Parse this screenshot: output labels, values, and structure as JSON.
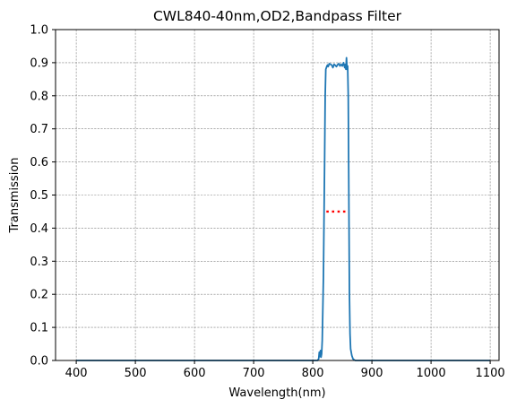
{
  "chart_data": {
    "type": "line",
    "title": "CWL840-40nm,OD2,Bandpass Filter",
    "xlabel": "Wavelength(nm)",
    "ylabel": "Transmission",
    "xlim": [
      365,
      1115
    ],
    "ylim": [
      0,
      1.0
    ],
    "xticks": [
      400,
      500,
      600,
      700,
      800,
      900,
      1000,
      1100
    ],
    "yticks": [
      0.0,
      0.1,
      0.2,
      0.3,
      0.4,
      0.5,
      0.6,
      0.7,
      0.8,
      0.9,
      1.0
    ],
    "grid": true,
    "legend": "none",
    "series": [
      {
        "color": "#1f77b4",
        "style": "solid",
        "x": [
          400,
          700,
          800,
          808,
          810,
          811,
          812,
          813,
          814,
          815,
          816,
          818,
          820,
          821,
          822,
          823,
          824,
          825,
          826,
          828,
          830,
          832,
          834,
          836,
          838,
          840,
          842,
          844,
          846,
          848,
          850,
          852,
          854,
          855,
          856,
          857,
          858,
          859,
          860,
          861,
          862,
          863,
          864,
          866,
          868,
          870,
          872,
          875,
          880,
          900,
          1000,
          1100
        ],
        "y": [
          0.0,
          0.0,
          0.0,
          0.0,
          0.005,
          0.025,
          0.012,
          0.03,
          0.01,
          0.02,
          0.06,
          0.25,
          0.6,
          0.8,
          0.88,
          0.885,
          0.89,
          0.893,
          0.888,
          0.897,
          0.895,
          0.893,
          0.885,
          0.895,
          0.892,
          0.888,
          0.894,
          0.897,
          0.89,
          0.895,
          0.89,
          0.9,
          0.885,
          0.895,
          0.88,
          0.915,
          0.88,
          0.89,
          0.8,
          0.5,
          0.2,
          0.08,
          0.035,
          0.015,
          0.005,
          0.002,
          0.0,
          0.0,
          0.0,
          0.0,
          0.0,
          0.0
        ]
      },
      {
        "color": "#ff0000",
        "style": "dotted",
        "x": [
          823,
          856
        ],
        "y": [
          0.45,
          0.45
        ]
      }
    ]
  }
}
